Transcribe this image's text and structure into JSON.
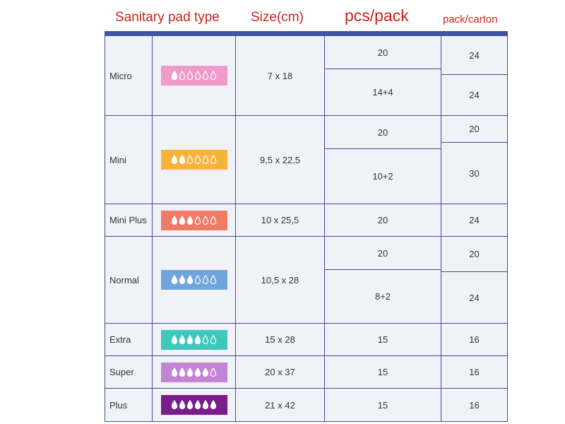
{
  "headers": {
    "type": "Sanitary pad type",
    "size": "Size(cm)",
    "pcs": "pcs/pack",
    "carton": "pack/carton"
  },
  "rows": [
    {
      "name": "Micro",
      "size": "7 x 18",
      "color": "#f09bc9",
      "filled": 1,
      "packs": [
        {
          "pcs": "20",
          "carton": "24"
        },
        {
          "pcs": "14+4",
          "carton": "24"
        }
      ]
    },
    {
      "name": "Mini",
      "size": "9,5 x 22,5",
      "color": "#f7b23c",
      "filled": 2,
      "packs": [
        {
          "pcs": "20",
          "carton": "20"
        },
        {
          "pcs": "10+2",
          "carton": "30"
        }
      ]
    },
    {
      "name": "Mini Plus",
      "size": "10 x 25,5",
      "color": "#f07b66",
      "filled": 3,
      "packs": [
        {
          "pcs": "20",
          "carton": "24"
        }
      ]
    },
    {
      "name": "Normal",
      "size": "10,5 x 28",
      "color": "#6fa5dc",
      "filled": 3,
      "packs": [
        {
          "pcs": "20",
          "carton": "20"
        },
        {
          "pcs": "8+2",
          "carton": "24"
        }
      ]
    },
    {
      "name": "Extra",
      "size": "15 x 28",
      "color": "#3ec8bc",
      "filled": 4,
      "packs": [
        {
          "pcs": "15",
          "carton": "16"
        }
      ]
    },
    {
      "name": "Super",
      "size": "20 x 37",
      "color": "#c384d6",
      "filled": 5,
      "packs": [
        {
          "pcs": "15",
          "carton": "16"
        }
      ]
    },
    {
      "name": "Plus",
      "size": "21 x 42",
      "color": "#7a1c8c",
      "filled": 6,
      "packs": [
        {
          "pcs": "15",
          "carton": "16"
        }
      ]
    }
  ]
}
